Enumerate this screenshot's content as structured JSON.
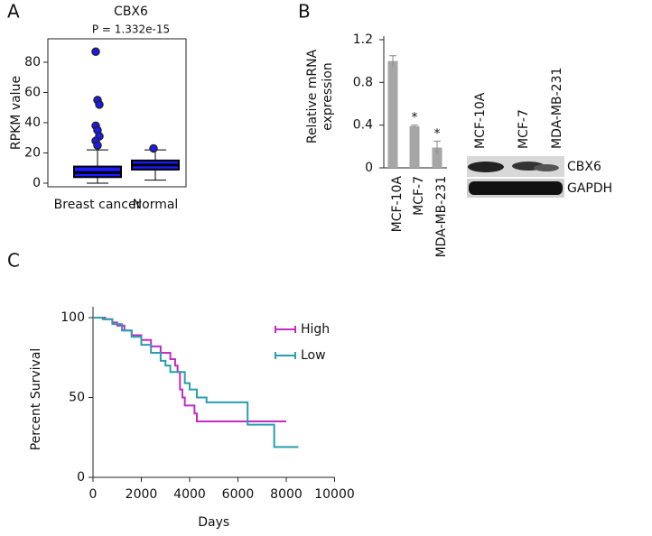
{
  "chart_data": [
    {
      "type": "box",
      "panel": "A",
      "title": "CBX6",
      "subtitle": "P = 1.332e-15",
      "ylabel": "RPKM value",
      "categories": [
        "Breast cancer",
        "Normal"
      ],
      "boxes": [
        {
          "whislo": 0,
          "q1": 4,
          "med": 7,
          "q3": 11,
          "whishi": 22,
          "fliers": [
            87,
            55,
            52,
            38,
            35,
            31,
            28,
            25
          ]
        },
        {
          "whislo": 2,
          "q1": 9,
          "med": 12,
          "q3": 15,
          "whishi": 22,
          "fliers": [
            23
          ]
        }
      ],
      "color": "#1a1aff",
      "ylim": [
        -2.4,
        95.5
      ],
      "yticks": [
        0,
        20,
        40,
        60,
        80
      ]
    },
    {
      "type": "bar",
      "panel": "B",
      "ylabel": [
        "Relative mRNA",
        "expression"
      ],
      "categories": [
        "MCF-10A",
        "MCF-7",
        "MDA-MB-231"
      ],
      "values": [
        1.0,
        0.39,
        0.19
      ],
      "errors": [
        0.05,
        0.01,
        0.06
      ],
      "annotations": [
        null,
        "*",
        "*"
      ],
      "color": "#a6a6a6",
      "ylim": [
        0,
        1.2
      ],
      "yticks": [
        0,
        0.4,
        0.8,
        1.2
      ],
      "blot_bands": [
        "CBX6",
        "GAPDH"
      ]
    },
    {
      "type": "line",
      "panel": "C",
      "xlabel": "Days",
      "ylabel": "Percent Survival",
      "series": [
        {
          "name": "High",
          "color": "#c42bc4",
          "x": [
            0,
            300,
            500,
            800,
            1000,
            1300,
            1600,
            2000,
            2400,
            2800,
            3200,
            3400,
            3500,
            3600,
            3700,
            3800,
            4200,
            4300,
            8000
          ],
          "values": [
            100,
            100,
            99,
            97,
            95,
            92,
            89,
            86,
            82,
            78,
            74,
            70,
            66,
            55,
            50,
            45,
            40,
            35,
            35
          ]
        },
        {
          "name": "Low",
          "color": "#2a9db0",
          "x": [
            0,
            400,
            800,
            1200,
            1600,
            2000,
            2400,
            2800,
            3000,
            3200,
            3800,
            4000,
            4300,
            4700,
            6300,
            6400,
            7400,
            7500,
            8500
          ],
          "values": [
            100,
            99,
            96,
            92,
            88,
            83,
            78,
            73,
            70,
            66,
            59,
            55,
            50,
            47,
            47,
            33,
            33,
            19,
            19
          ]
        }
      ],
      "xlim": [
        0,
        10000
      ],
      "xticks": [
        0,
        2000,
        4000,
        6000,
        8000,
        10000
      ],
      "ylim": [
        0,
        106.8
      ],
      "yticks": [
        0,
        50,
        100
      ],
      "legend": "upper right"
    }
  ]
}
